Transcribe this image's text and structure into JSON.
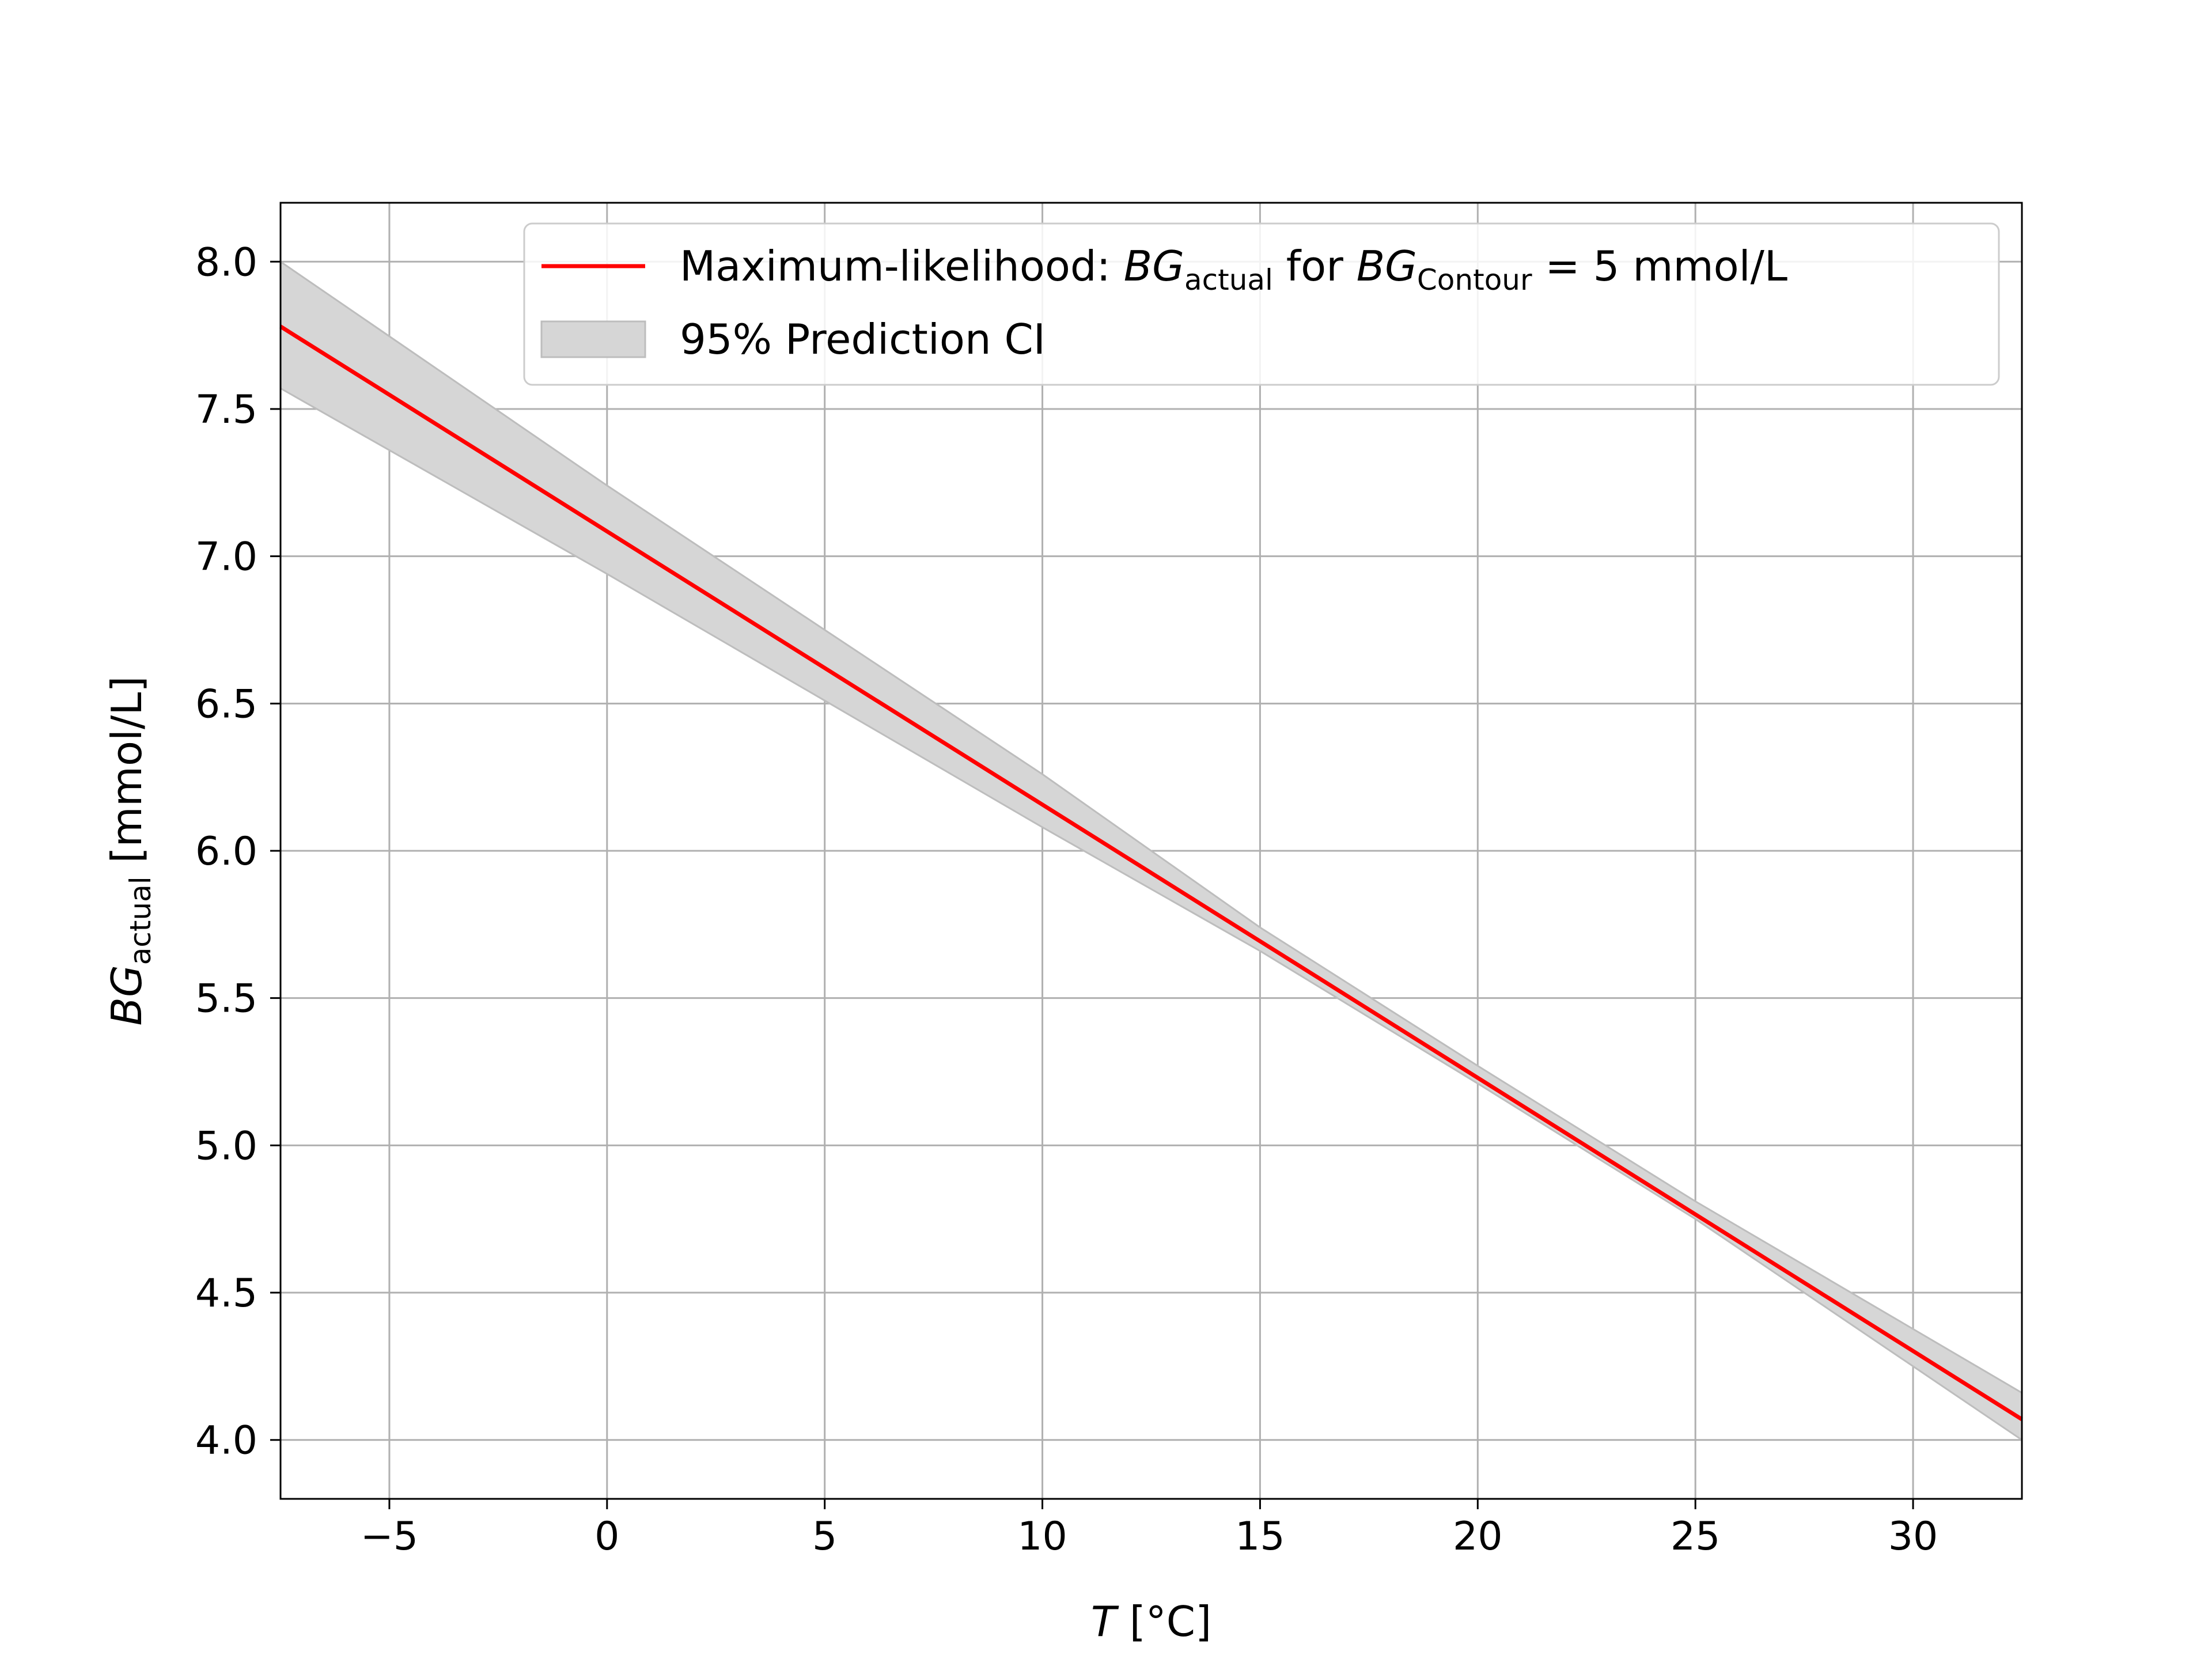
{
  "chart_data": {
    "type": "line",
    "x_axis": {
      "label_symbol": "T",
      "label_unit": " [°C]",
      "range": [
        -7.5,
        32.5
      ],
      "ticks": [
        -5,
        0,
        5,
        10,
        15,
        20,
        25,
        30
      ],
      "tick_labels": [
        "−5",
        "0",
        "5",
        "10",
        "15",
        "20",
        "25",
        "30"
      ]
    },
    "y_axis": {
      "label_symbol": "BG",
      "label_subscript": "actual",
      "label_unit": " [mmol/L]",
      "range": [
        3.8,
        8.2
      ],
      "ticks": [
        4.0,
        4.5,
        5.0,
        5.5,
        6.0,
        6.5,
        7.0,
        7.5,
        8.0
      ],
      "tick_labels": [
        "4.0",
        "4.5",
        "5.0",
        "5.5",
        "6.0",
        "6.5",
        "7.0",
        "7.5",
        "8.0"
      ]
    },
    "grid": true,
    "legend_position": "top-right",
    "series": [
      {
        "kind": "line",
        "color": "#ff0000",
        "legend": {
          "prefix": "Maximum-likelihood: ",
          "sym1": "BG",
          "sub1": "actual",
          "mid": " for ",
          "sym2": "BG",
          "sub2": "Contour",
          "suffix": " = 5 mmol/L"
        },
        "x": [
          -7.5,
          32.5
        ],
        "y": [
          7.78,
          4.07
        ]
      },
      {
        "kind": "band",
        "color": "#d6d6d6",
        "edge_color": "#bdbdbd",
        "legend": {
          "text": "95% Prediction CI"
        },
        "x": [
          -7.5,
          0,
          5,
          10,
          15,
          20,
          25,
          32.5
        ],
        "lower": [
          7.57,
          6.94,
          6.51,
          6.08,
          5.66,
          5.21,
          4.75,
          4.0
        ],
        "upper": [
          8.0,
          7.24,
          6.75,
          6.26,
          5.74,
          5.27,
          4.81,
          4.16
        ]
      }
    ]
  }
}
